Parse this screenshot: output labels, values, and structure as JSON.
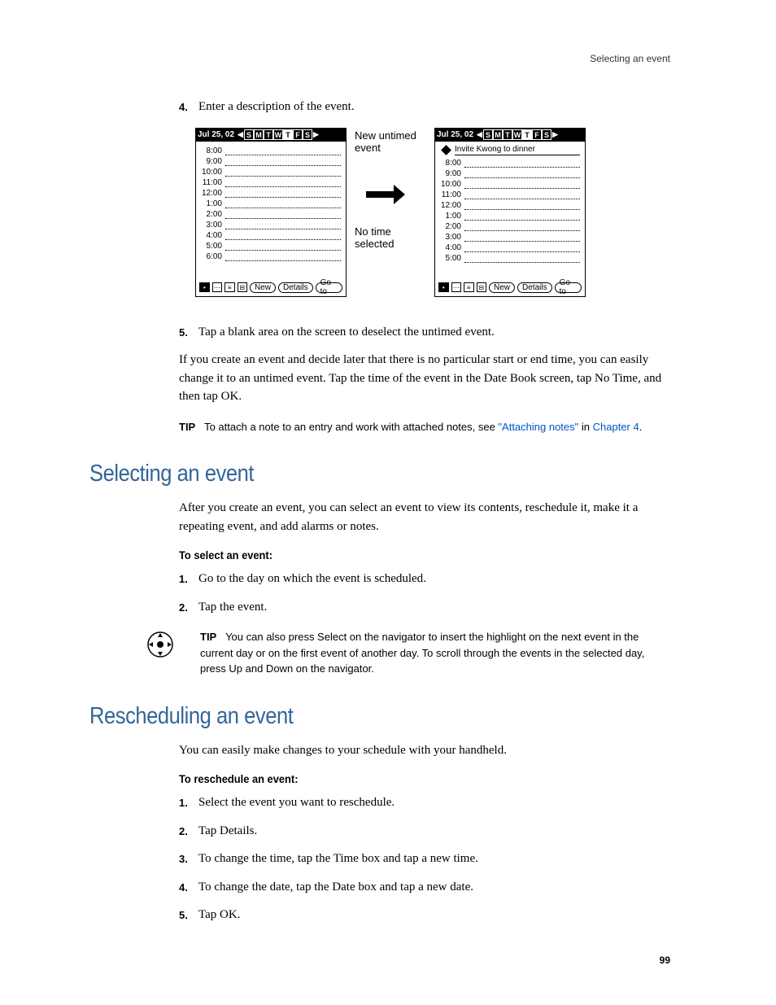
{
  "header": {
    "running_title": "Selecting an event"
  },
  "step4": {
    "num": "4.",
    "text": "Enter a description of the event."
  },
  "figure": {
    "annotation_top": "New untimed event",
    "annotation_bottom": "No time selected",
    "date_label": "Jul 25, 02",
    "days": [
      "S",
      "M",
      "T",
      "W",
      "T",
      "F",
      "S"
    ],
    "current_day_index": 4,
    "times_left": [
      "8:00",
      "9:00",
      "10:00",
      "11:00",
      "12:00",
      "1:00",
      "2:00",
      "3:00",
      "4:00",
      "5:00",
      "6:00"
    ],
    "times_right": [
      "8:00",
      "9:00",
      "10:00",
      "11:00",
      "12:00",
      "1:00",
      "2:00",
      "3:00",
      "4:00",
      "5:00"
    ],
    "untimed_text": "Invite Kwong to dinner",
    "buttons": [
      "New",
      "Details",
      "Go to"
    ]
  },
  "step5": {
    "num": "5.",
    "text": "Tap a blank area on the screen to deselect the untimed event."
  },
  "untimed_note": "If you create an event and decide later that there is no particular start or end time, you can easily change it to an untimed event. Tap the time of the event in the Date Book screen, tap No Time, and then tap OK.",
  "tip1": {
    "label": "TIP",
    "text_before_link": "To attach a note to an entry and work with attached notes, see ",
    "link1": "\"Attaching notes\"",
    "text_between": " in ",
    "link2": "Chapter 4",
    "text_after": "."
  },
  "section1": {
    "heading": "Selecting an event",
    "intro": "After you create an event, you can select an event to view its contents, reschedule it, make it a repeating event, and add alarms or notes.",
    "subheading": "To select an event:",
    "step1": {
      "num": "1.",
      "text": "Go to the day on which the event is scheduled."
    },
    "step2": {
      "num": "2.",
      "text": "Tap the event."
    },
    "nav_tip": {
      "label": "TIP",
      "text": "You can also press Select on the navigator to insert the highlight on the next event in the current day or on the first event of another day. To scroll through the events in the selected day, press Up and Down on the navigator."
    }
  },
  "section2": {
    "heading": "Rescheduling an event",
    "intro": "You can easily make changes to your schedule with your handheld.",
    "subheading": "To reschedule an event:",
    "step1": {
      "num": "1.",
      "text": "Select the event you want to reschedule."
    },
    "step2": {
      "num": "2.",
      "text": "Tap Details."
    },
    "step3": {
      "num": "3.",
      "text": "To change the time, tap the Time box and tap a new time."
    },
    "step4": {
      "num": "4.",
      "text": "To change the date, tap the Date box and tap a new date."
    },
    "step5": {
      "num": "5.",
      "text": "Tap OK."
    }
  },
  "page_number": "99",
  "colors": {
    "heading": "#336699",
    "link": "#0055cc",
    "text": "#000000",
    "background": "#ffffff"
  }
}
